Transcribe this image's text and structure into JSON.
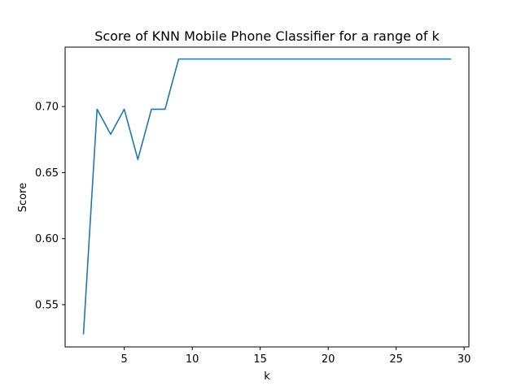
{
  "chart_data": {
    "type": "line",
    "title": "Score of KNN Mobile Phone Classifier for a range of k",
    "xlabel": "k",
    "ylabel": "Score",
    "xlim": [
      0.65,
      30.35
    ],
    "ylim": [
      0.518,
      0.745
    ],
    "xticks": [
      5,
      10,
      15,
      20,
      25,
      30
    ],
    "xtick_labels": [
      "5",
      "10",
      "15",
      "20",
      "25",
      "30"
    ],
    "yticks": [
      0.55,
      0.6,
      0.65,
      0.7
    ],
    "ytick_labels": [
      "0.55",
      "0.60",
      "0.65",
      "0.70"
    ],
    "grid": false,
    "color": "#1f77b4",
    "series": [
      {
        "x": [
          2,
          3,
          4,
          5,
          6,
          7,
          8,
          9,
          10,
          11,
          12,
          13,
          14,
          15,
          16,
          17,
          18,
          19,
          20,
          21,
          22,
          23,
          24,
          25,
          26,
          27,
          28,
          29
        ],
        "values": [
          0.528,
          0.698,
          0.679,
          0.698,
          0.66,
          0.698,
          0.698,
          0.736,
          0.736,
          0.736,
          0.736,
          0.736,
          0.736,
          0.736,
          0.736,
          0.736,
          0.736,
          0.736,
          0.736,
          0.736,
          0.736,
          0.736,
          0.736,
          0.736,
          0.736,
          0.736,
          0.736,
          0.736
        ]
      }
    ]
  }
}
